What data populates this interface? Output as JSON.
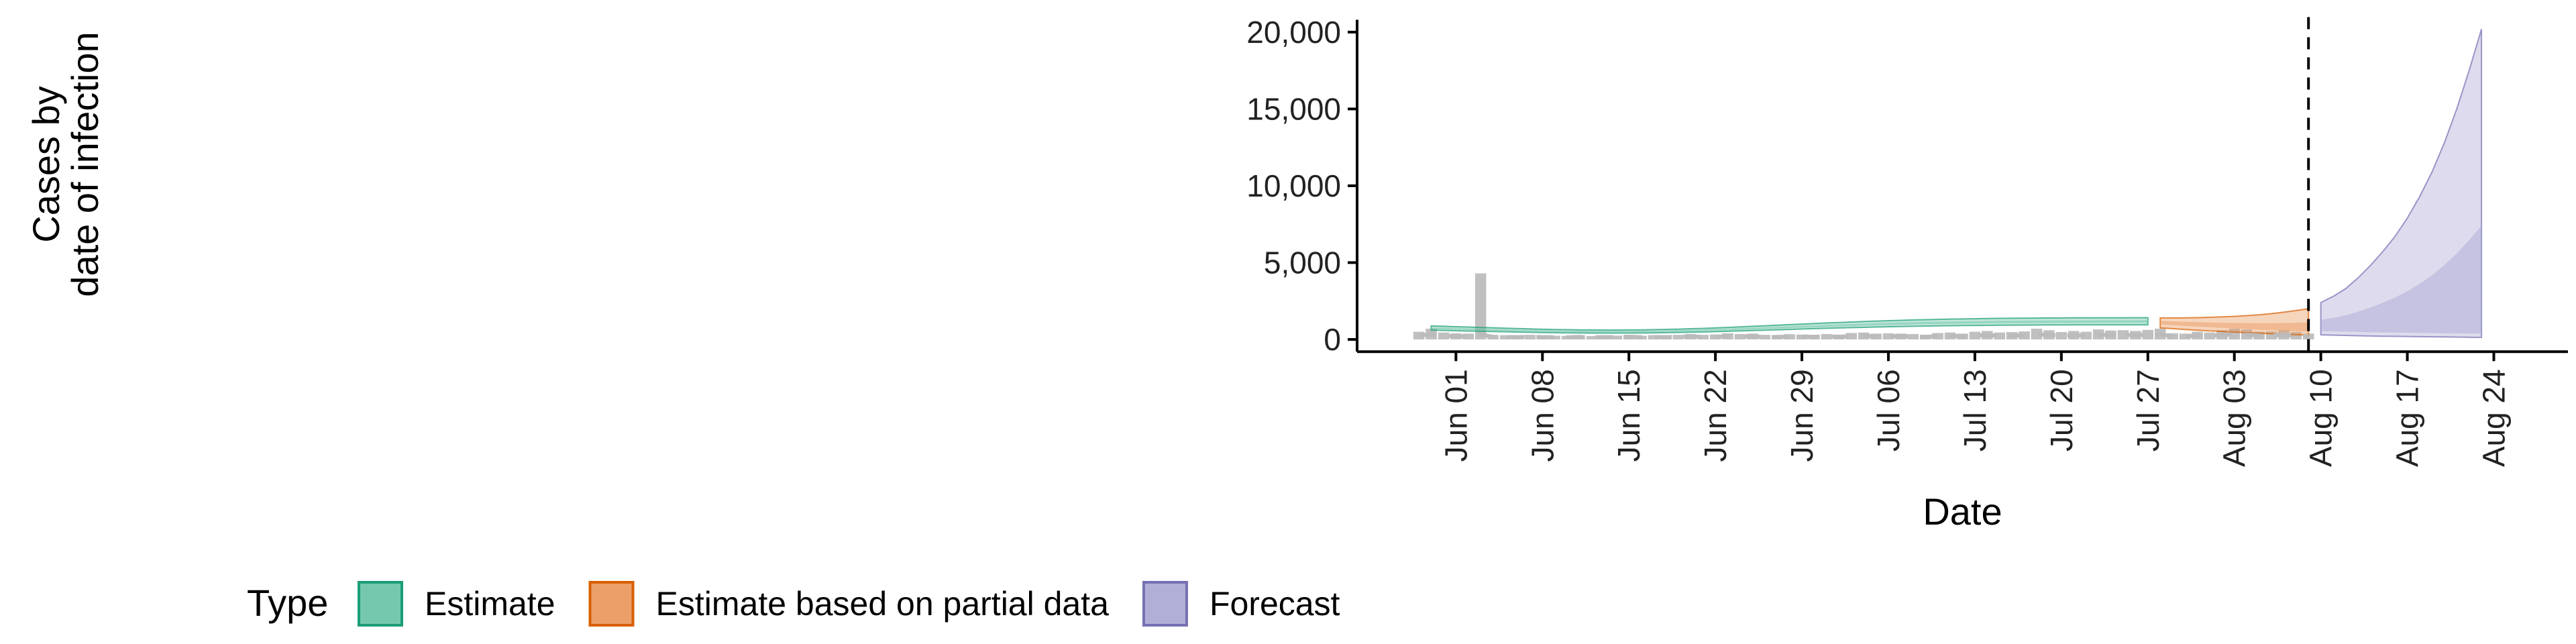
{
  "chart_data": {
    "type": "area",
    "xlabel": "Date",
    "ylabel_lines": [
      "Cases by",
      "date of infection"
    ],
    "y_ticks": [
      0,
      5000,
      10000,
      15000,
      20000
    ],
    "y_tick_labels": [
      "0",
      "5,000",
      "10,000",
      "15,000",
      "20,000"
    ],
    "ylim": [
      -800,
      20800
    ],
    "x_start": "2020-05-24",
    "x_end": "2020-08-30",
    "x_ticks": [
      "2020-06-01",
      "2020-06-08",
      "2020-06-15",
      "2020-06-22",
      "2020-06-29",
      "2020-07-06",
      "2020-07-13",
      "2020-07-20",
      "2020-07-27",
      "2020-08-03",
      "2020-08-10",
      "2020-08-17",
      "2020-08-24"
    ],
    "x_tick_labels": [
      "Jun 01",
      "Jun 08",
      "Jun 15",
      "Jun 22",
      "Jun 29",
      "Jul 06",
      "Jul 13",
      "Jul 20",
      "Jul 27",
      "Aug 03",
      "Aug 10",
      "Aug 17",
      "Aug 24"
    ],
    "forecast_start": "2020-08-09",
    "legend_title": "Type",
    "legend": [
      {
        "label": "Estimate",
        "fill": "#66C2A5",
        "stroke": "#1B9E77"
      },
      {
        "label": "Estimate based on partial data",
        "fill": "#E9965A",
        "stroke": "#D95F02"
      },
      {
        "label": "Forecast",
        "fill": "#A9A6D3",
        "stroke": "#7570B3"
      }
    ],
    "reported_cases": {
      "start": "2020-05-29",
      "values": [
        500,
        700,
        450,
        400,
        380,
        4300,
        300,
        280,
        260,
        300,
        250,
        240,
        230,
        280,
        220,
        260,
        250,
        300,
        240,
        280,
        260,
        300,
        350,
        300,
        320,
        400,
        350,
        380,
        300,
        280,
        340,
        320,
        300,
        350,
        310,
        420,
        450,
        380,
        400,
        380,
        350,
        300,
        420,
        450,
        380,
        500,
        550,
        450,
        480,
        520,
        700,
        600,
        480,
        550,
        500,
        650,
        580,
        600,
        550,
        620,
        700,
        400,
        380,
        500,
        450,
        600,
        700,
        650,
        500,
        520,
        600,
        480,
        380
      ]
    },
    "estimates": [
      {
        "type": "Estimate",
        "start": "2020-05-30",
        "median": [
          720,
          700,
          680,
          660,
          640,
          620,
          600,
          580,
          560,
          545,
          530,
          520,
          510,
          505,
          500,
          500,
          505,
          510,
          520,
          535,
          550,
          570,
          590,
          615,
          640,
          670,
          700,
          730,
          760,
          790,
          820,
          850,
          880,
          905,
          930,
          955,
          980,
          1000,
          1020,
          1040,
          1055,
          1070,
          1085,
          1095,
          1105,
          1115,
          1125,
          1130,
          1135,
          1140,
          1145,
          1148,
          1150,
          1152,
          1154,
          1155,
          1156,
          1157,
          1158
        ],
        "lower": [
          600,
          585,
          565,
          545,
          530,
          510,
          495,
          478,
          462,
          450,
          437,
          428,
          420,
          415,
          412,
          412,
          416,
          420,
          428,
          440,
          453,
          470,
          486,
          506,
          527,
          552,
          576,
          601,
          626,
          650,
          675,
          700,
          724,
          745,
          766,
          786,
          807,
          823,
          840,
          856,
          868,
          881,
          893,
          901,
          910,
          918,
          926,
          930,
          934,
          938,
          942,
          944,
          946,
          948,
          949,
          950,
          951,
          952,
          953
        ],
        "upper": [
          880,
          855,
          830,
          805,
          782,
          757,
          733,
          708,
          684,
          665,
          647,
          635,
          623,
          617,
          610,
          610,
          617,
          623,
          635,
          653,
          672,
          696,
          720,
          751,
          782,
          818,
          855,
          891,
          928,
          964,
          1001,
          1038,
          1074,
          1105,
          1135,
          1166,
          1196,
          1221,
          1245,
          1270,
          1288,
          1306,
          1325,
          1337,
          1349,
          1361,
          1373,
          1379,
          1386,
          1392,
          1398,
          1402,
          1404,
          1407,
          1409,
          1410,
          1411,
          1413,
          1414
        ]
      },
      {
        "type": "Estimate based on partial data",
        "start": "2020-07-28",
        "median": [
          1100,
          1050,
          1000,
          960,
          920,
          880,
          840,
          800,
          760,
          720,
          690,
          660,
          630
        ],
        "lower": [
          750,
          700,
          650,
          600,
          560,
          520,
          480,
          440,
          400,
          370,
          340,
          310,
          280
        ],
        "upper": [
          1400,
          1400,
          1400,
          1420,
          1440,
          1470,
          1500,
          1550,
          1600,
          1680,
          1770,
          1880,
          2000
        ]
      },
      {
        "type": "Forecast",
        "start": "2020-08-10",
        "median": [
          680,
          660,
          640,
          620,
          600,
          590,
          580,
          570,
          560,
          550,
          540,
          530,
          520,
          510
        ],
        "lower": [
          300,
          280,
          260,
          240,
          220,
          210,
          200,
          190,
          180,
          170,
          160,
          150,
          140,
          130
        ],
        "upper": [
          2400,
          2800,
          3300,
          4000,
          4800,
          5700,
          6700,
          7900,
          9300,
          10900,
          12800,
          15000,
          17500,
          20200
        ]
      }
    ]
  }
}
